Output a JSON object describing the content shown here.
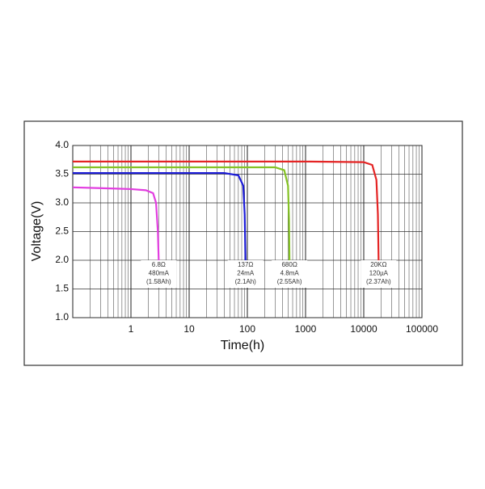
{
  "chart_data": {
    "type": "line",
    "xlabel": "Time(h)",
    "ylabel": "Voltage(V)",
    "xscale": "log",
    "grid": true,
    "minor_grid": true,
    "xlim": [
      0.1,
      100000
    ],
    "xticks": [
      1,
      10,
      100,
      1000,
      10000,
      100000
    ],
    "ylim": [
      1,
      4
    ],
    "yticks": [
      {
        "value": 1,
        "label": "1.0"
      },
      1.5,
      {
        "value": 2,
        "label": "2.0"
      },
      2.5,
      {
        "value": 3,
        "label": "3.0"
      },
      3.5,
      {
        "value": 4,
        "label": "4.0"
      }
    ],
    "series": [
      {
        "color": "#e23de0",
        "label": [
          "6.8Ω",
          "480mA",
          "(1.58Ah)"
        ],
        "x": [
          0.1,
          0.5,
          1,
          1.8,
          2.4,
          2.7,
          2.9,
          3.0
        ],
        "values": [
          3.27,
          3.25,
          3.24,
          3.22,
          3.17,
          3.0,
          2.5,
          2.0
        ]
      },
      {
        "color": "#1c1cd8",
        "label": [
          "137Ω",
          "24mA",
          "(2.1Ah)"
        ],
        "x": [
          0.1,
          10,
          40,
          70,
          85,
          90,
          93
        ],
        "values": [
          3.52,
          3.52,
          3.52,
          3.48,
          3.3,
          2.8,
          2.0
        ]
      },
      {
        "color": "#84c224",
        "label": [
          "680Ω",
          "4.8mA",
          "(2.55Ah)"
        ],
        "x": [
          0.1,
          100,
          300,
          430,
          500,
          520,
          530
        ],
        "values": [
          3.62,
          3.62,
          3.62,
          3.57,
          3.3,
          2.7,
          2.0
        ]
      },
      {
        "color": "#e42424",
        "label": [
          "20KΩ",
          "120µA",
          "(2.37Ah)"
        ],
        "x": [
          0.1,
          1000,
          10000,
          14000,
          16500,
          17500,
          18000
        ],
        "values": [
          3.72,
          3.72,
          3.71,
          3.66,
          3.4,
          2.8,
          2.0
        ]
      }
    ]
  }
}
